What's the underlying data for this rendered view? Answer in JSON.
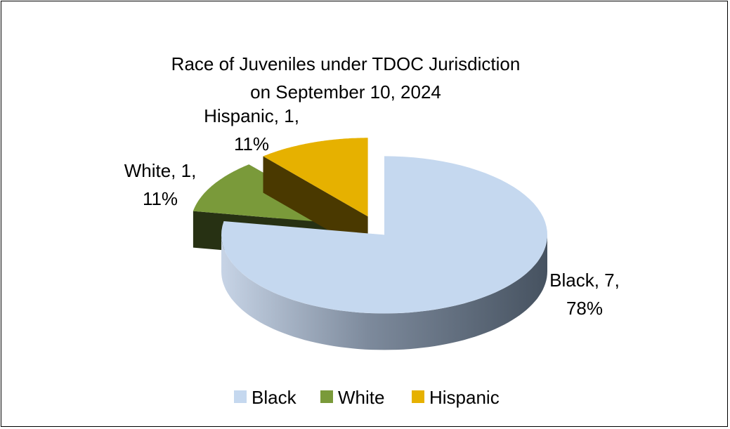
{
  "chart_data": {
    "type": "pie",
    "title_lines": [
      "Race of Juveniles under TDOC Jurisdiction",
      "on September 10, 2024"
    ],
    "categories": [
      "Black",
      "White",
      "Hispanic"
    ],
    "values": [
      7,
      1,
      1
    ],
    "percents": [
      "78%",
      "11%",
      "11%"
    ],
    "colors": [
      "#c5d8ef",
      "#7a9a3a",
      "#e6b100"
    ],
    "data_labels": [
      [
        "Black, 7,",
        "78%"
      ],
      [
        "White, 1,",
        "11%"
      ],
      [
        "Hispanic, 1,",
        "11%"
      ]
    ],
    "legend": {
      "position": "bottom",
      "entries": [
        "Black",
        "White",
        "Hispanic"
      ]
    },
    "style": "3d-exploded"
  }
}
